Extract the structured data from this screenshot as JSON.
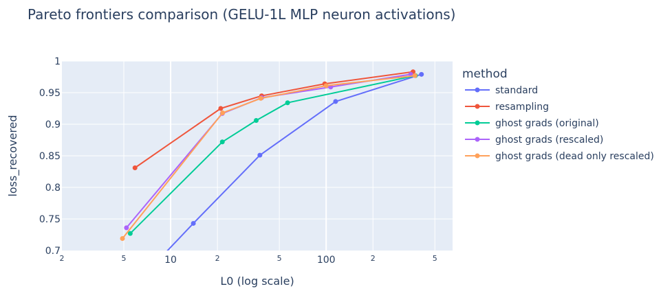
{
  "chart_data": {
    "type": "line",
    "title": "Pareto frontiers comparison (GELU-1L MLP neuron activations)",
    "xlabel": "L0 (log scale)",
    "ylabel": "loss_recovered",
    "xscale": "log",
    "xlim": [
      2,
      650
    ],
    "ylim": [
      0.7,
      1.0
    ],
    "xticks_major": [
      {
        "value": 10,
        "label": "10"
      },
      {
        "value": 100,
        "label": "100"
      }
    ],
    "xticks_minor": [
      {
        "value": 2,
        "label": "2"
      },
      {
        "value": 5,
        "label": "5"
      },
      {
        "value": 20,
        "label": "2"
      },
      {
        "value": 50,
        "label": "5"
      },
      {
        "value": 200,
        "label": "2"
      },
      {
        "value": 500,
        "label": "5"
      }
    ],
    "yticks": [
      {
        "value": 0.7,
        "label": "0.7"
      },
      {
        "value": 0.75,
        "label": "0.75"
      },
      {
        "value": 0.8,
        "label": "0.8"
      },
      {
        "value": 0.85,
        "label": "0.85"
      },
      {
        "value": 0.9,
        "label": "0.9"
      },
      {
        "value": 0.95,
        "label": "0.95"
      },
      {
        "value": 1.0,
        "label": "1"
      }
    ],
    "legend": {
      "title": "method",
      "position": "right"
    },
    "grid": true,
    "series": [
      {
        "name": "standard",
        "color": "#636efa",
        "x": [
          8.6,
          14,
          37.5,
          115,
          410
        ],
        "y": [
          0.688,
          0.743,
          0.851,
          0.936,
          0.979
        ]
      },
      {
        "name": "resampling",
        "color": "#ef553b",
        "x": [
          5.9,
          21,
          38.5,
          98,
          362
        ],
        "y": [
          0.831,
          0.925,
          0.945,
          0.964,
          0.983
        ]
      },
      {
        "name": "ghost grads (original)",
        "color": "#00cc96",
        "x": [
          5.5,
          21.5,
          35.5,
          56.5,
          375
        ],
        "y": [
          0.727,
          0.872,
          0.906,
          0.934,
          0.977
        ]
      },
      {
        "name": "ghost grads (rescaled)",
        "color": "#ab63fa",
        "x": [
          5.2,
          21.5,
          38.5,
          107,
          350
        ],
        "y": [
          0.736,
          0.917,
          0.942,
          0.959,
          0.979
        ]
      },
      {
        "name": "ghost grads (dead only rescaled)",
        "color": "#ffa15a",
        "x": [
          4.9,
          21.6,
          38,
          100,
          372
        ],
        "y": [
          0.719,
          0.918,
          0.941,
          0.961,
          0.977
        ]
      }
    ]
  }
}
